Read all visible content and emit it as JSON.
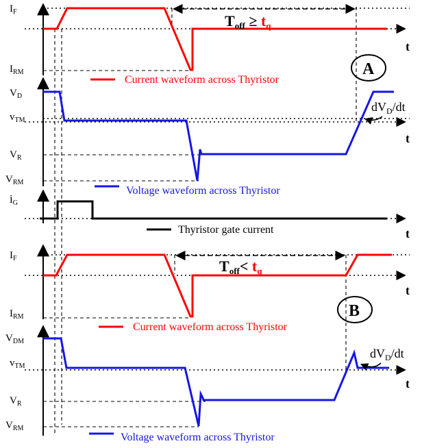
{
  "colors": {
    "current": "#ff0000",
    "voltage": "#1515e6",
    "gate": "#000000",
    "tq": "#ff0000"
  },
  "axis_labels": {
    "time": "t",
    "top_current": {
      "IF": [
        "I",
        "F"
      ],
      "IRM": [
        "I",
        "RM"
      ]
    },
    "top_voltage": {
      "VD": [
        "V",
        "D"
      ],
      "vTM": [
        "v",
        "TM"
      ],
      "VR": [
        "V",
        "R"
      ],
      "VRM": [
        "V",
        "RM"
      ]
    },
    "gate": {
      "iG": [
        "i",
        "G"
      ]
    },
    "bottom_current": {
      "IF": [
        "I",
        "F"
      ],
      "IRM": [
        "I",
        "RM"
      ]
    },
    "bottom_voltage": {
      "VDM": [
        "V",
        "DM"
      ],
      "vTM": [
        "v",
        "TM"
      ],
      "VR": [
        "V",
        "R"
      ],
      "VRM": [
        "V",
        "RM"
      ]
    }
  },
  "case_a": {
    "circle_label": "A",
    "toff_T": "T",
    "toff_sub": "off",
    "relation": " ≥ ",
    "tq_t": "t",
    "tq_sub": "q",
    "slope": {
      "d": "dV",
      "sub": "D",
      "rest": "/dt"
    },
    "current_legend": "Current waveform across Thyristor",
    "voltage_legend": "Voltage waveform across Thyristor"
  },
  "gate_legend": "Thyristor gate current",
  "case_b": {
    "circle_label": "B",
    "toff_T": "T",
    "toff_sub": "off",
    "relation": "< ",
    "tq_t": "t",
    "tq_sub": "q",
    "slope": {
      "d": "dV",
      "sub": "D",
      "rest": "/dt"
    },
    "current_legend": "Current waveform across Thyristor",
    "voltage_legend": "Voltage waveform across Thyristor"
  }
}
